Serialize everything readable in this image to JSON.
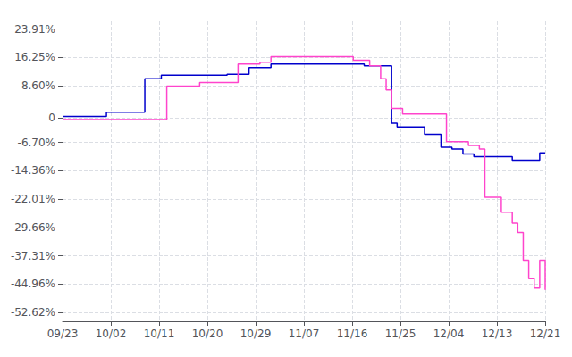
{
  "chart_data": {
    "type": "step",
    "x": [
      0,
      1,
      2,
      3,
      4,
      5,
      6,
      7,
      8,
      9,
      10,
      11,
      12,
      13,
      14,
      15,
      16,
      17,
      18,
      19,
      20,
      21,
      22,
      23,
      24,
      25,
      26,
      27,
      28,
      29,
      30,
      31,
      32,
      33,
      34,
      35,
      36,
      37,
      38,
      39,
      40,
      41,
      42,
      43,
      44,
      45,
      46,
      47,
      48,
      49,
      50,
      51,
      52,
      53,
      54,
      55,
      56,
      57,
      58,
      59,
      60,
      61,
      62,
      63,
      64,
      65,
      66,
      67,
      68,
      69,
      70,
      71,
      72,
      73,
      74,
      75,
      76,
      77,
      78,
      79,
      80,
      81,
      82,
      83,
      84,
      85,
      86,
      87,
      88
    ],
    "series": [
      {
        "color": "#0000cc",
        "values": [
          0.3,
          0.3,
          0.3,
          0.3,
          0.3,
          0.3,
          0.3,
          0.3,
          1.5,
          1.5,
          1.5,
          1.5,
          1.5,
          1.5,
          1.5,
          10.5,
          10.5,
          10.5,
          11.5,
          11.5,
          11.5,
          11.5,
          11.5,
          11.5,
          11.5,
          11.5,
          11.5,
          11.5,
          11.5,
          11.5,
          11.7,
          11.7,
          11.7,
          11.7,
          13.5,
          13.5,
          13.5,
          13.5,
          14.5,
          14.5,
          14.5,
          14.5,
          14.5,
          14.5,
          14.5,
          14.5,
          14.5,
          14.5,
          14.5,
          14.5,
          14.5,
          14.5,
          14.5,
          14.5,
          14.5,
          14.0,
          14.0,
          14.0,
          14.0,
          14.0,
          -1.5,
          -2.5,
          -2.5,
          -2.5,
          -2.5,
          -2.5,
          -4.5,
          -4.5,
          -4.5,
          -8.0,
          -8.0,
          -8.5,
          -8.5,
          -9.8,
          -9.8,
          -10.5,
          -10.5,
          -10.5,
          -10.5,
          -10.5,
          -10.5,
          -10.5,
          -11.5,
          -11.5,
          -11.5,
          -11.5,
          -11.5,
          -9.5,
          -9.5
        ]
      },
      {
        "color": "#ff44cc",
        "values": [
          -0.5,
          -0.5,
          -0.5,
          -0.5,
          -0.5,
          -0.5,
          -0.5,
          -0.5,
          -0.5,
          -0.5,
          -0.5,
          -0.5,
          -0.5,
          -0.5,
          -0.5,
          -0.5,
          -0.5,
          -0.5,
          -0.5,
          8.5,
          8.5,
          8.5,
          8.5,
          8.5,
          8.5,
          9.5,
          9.5,
          9.5,
          9.5,
          9.5,
          9.5,
          9.5,
          14.5,
          14.5,
          14.5,
          14.5,
          15.0,
          15.0,
          16.5,
          16.5,
          16.5,
          16.5,
          16.5,
          16.5,
          16.5,
          16.5,
          16.5,
          16.5,
          16.5,
          16.5,
          16.5,
          16.5,
          16.5,
          15.5,
          15.5,
          15.5,
          14.0,
          14.0,
          10.5,
          7.5,
          2.5,
          2.5,
          1.0,
          1.0,
          1.0,
          1.0,
          1.0,
          1.0,
          1.0,
          1.0,
          -6.5,
          -6.5,
          -6.5,
          -6.5,
          -7.5,
          -7.5,
          -8.5,
          -21.5,
          -21.5,
          -21.5,
          -25.5,
          -25.5,
          -28.5,
          -31.0,
          -38.5,
          -43.5,
          -46.0,
          -38.5,
          -46.5
        ]
      }
    ],
    "xlim": [
      0,
      88
    ],
    "xticks": [
      {
        "value": 0,
        "label": "09/23"
      },
      {
        "value": 8.8,
        "label": "10/02"
      },
      {
        "value": 17.6,
        "label": "10/11"
      },
      {
        "value": 26.4,
        "label": "10/20"
      },
      {
        "value": 35.2,
        "label": "10/29"
      },
      {
        "value": 44,
        "label": "11/07"
      },
      {
        "value": 52.8,
        "label": "11/16"
      },
      {
        "value": 61.6,
        "label": "11/25"
      },
      {
        "value": 70.4,
        "label": "12/04"
      },
      {
        "value": 79.2,
        "label": "12/13"
      },
      {
        "value": 88,
        "label": "12/21"
      }
    ],
    "ylim": [
      -55,
      26
    ],
    "yticks": [
      {
        "value": 23.91,
        "label": "23.91%"
      },
      {
        "value": 16.25,
        "label": "16.25%"
      },
      {
        "value": 8.6,
        "label": "8.60%"
      },
      0,
      {
        "value": -6.7,
        "label": "-6.70%"
      },
      {
        "value": -14.36,
        "label": "-14.36%"
      },
      {
        "value": -22.01,
        "label": "-22.01%"
      },
      {
        "value": -29.66,
        "label": "-29.66%"
      },
      {
        "value": -37.31,
        "label": "-37.31%"
      },
      {
        "value": -44.96,
        "label": "-44.96%"
      },
      {
        "value": -52.62,
        "label": "-52.62%"
      }
    ],
    "grid": true
  }
}
